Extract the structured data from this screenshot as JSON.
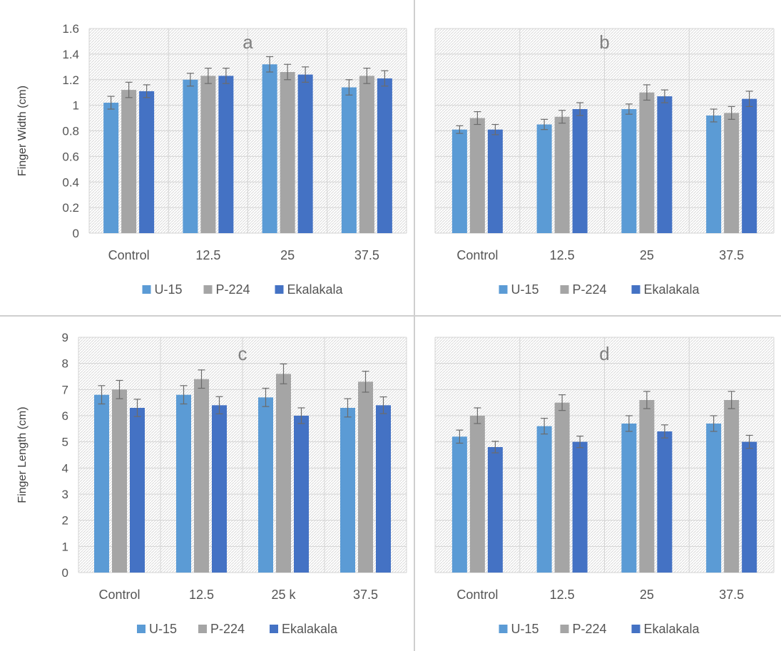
{
  "series_colors": {
    "U-15": "#5B9BD5",
    "P-224": "#A5A5A5",
    "Ekalakala": "#4472C4"
  },
  "chart_data": [
    {
      "type": "bar",
      "panel_label": "a",
      "ylabel": "Finger Width (cm)",
      "categories": [
        "Control",
        "12.5",
        "25",
        "37.5"
      ],
      "ylim": [
        0,
        1.6
      ],
      "yticks": [
        "0",
        "0.2",
        "0.4",
        "0.6",
        "0.8",
        "1",
        "1.2",
        "1.4",
        "1.6"
      ],
      "grid": true,
      "legend": "bottom",
      "series": [
        {
          "name": "U-15",
          "values": [
            1.02,
            1.2,
            1.32,
            1.14
          ],
          "errors": [
            0.05,
            0.05,
            0.06,
            0.06
          ]
        },
        {
          "name": "P-224",
          "values": [
            1.12,
            1.23,
            1.26,
            1.23
          ],
          "errors": [
            0.06,
            0.06,
            0.06,
            0.06
          ]
        },
        {
          "name": "Ekalakala",
          "values": [
            1.11,
            1.23,
            1.24,
            1.21
          ],
          "errors": [
            0.05,
            0.06,
            0.06,
            0.06
          ]
        }
      ]
    },
    {
      "type": "bar",
      "panel_label": "b",
      "ylabel": "",
      "categories": [
        "Control",
        "12.5",
        "25",
        "37.5"
      ],
      "ylim": [
        0,
        1.6
      ],
      "yticks": [],
      "grid": true,
      "legend": "bottom",
      "series": [
        {
          "name": "U-15",
          "values": [
            0.81,
            0.85,
            0.97,
            0.92
          ],
          "errors": [
            0.03,
            0.04,
            0.04,
            0.05
          ]
        },
        {
          "name": "P-224",
          "values": [
            0.9,
            0.91,
            1.1,
            0.94
          ],
          "errors": [
            0.05,
            0.05,
            0.06,
            0.05
          ]
        },
        {
          "name": "Ekalakala",
          "values": [
            0.81,
            0.97,
            1.07,
            1.05
          ],
          "errors": [
            0.04,
            0.05,
            0.05,
            0.06
          ]
        }
      ]
    },
    {
      "type": "bar",
      "panel_label": "c",
      "ylabel": "Finger Length (cm)",
      "categories": [
        "Control",
        "12.5",
        "25 k",
        "37.5"
      ],
      "ylim": [
        0,
        9
      ],
      "yticks": [
        "0",
        "1",
        "2",
        "3",
        "4",
        "5",
        "6",
        "7",
        "8",
        "9"
      ],
      "grid": true,
      "legend": "bottom",
      "series": [
        {
          "name": "U-15",
          "values": [
            6.8,
            6.8,
            6.7,
            6.3
          ],
          "errors": [
            0.35,
            0.35,
            0.35,
            0.35
          ]
        },
        {
          "name": "P-224",
          "values": [
            7.0,
            7.4,
            7.6,
            7.3
          ],
          "errors": [
            0.35,
            0.35,
            0.38,
            0.4
          ]
        },
        {
          "name": "Ekalakala",
          "values": [
            6.3,
            6.4,
            6.0,
            6.4
          ],
          "errors": [
            0.33,
            0.33,
            0.3,
            0.32
          ]
        }
      ]
    },
    {
      "type": "bar",
      "panel_label": "d",
      "ylabel": "",
      "categories": [
        "Control",
        "12.5",
        "25",
        "37.5"
      ],
      "ylim": [
        0,
        9
      ],
      "yticks": [],
      "grid": true,
      "legend": "bottom",
      "series": [
        {
          "name": "U-15",
          "values": [
            5.2,
            5.6,
            5.7,
            5.7
          ],
          "errors": [
            0.25,
            0.3,
            0.3,
            0.3
          ]
        },
        {
          "name": "P-224",
          "values": [
            6.0,
            6.5,
            6.6,
            6.6
          ],
          "errors": [
            0.3,
            0.3,
            0.33,
            0.33
          ]
        },
        {
          "name": "Ekalakala",
          "values": [
            4.8,
            5.0,
            5.4,
            5.0
          ],
          "errors": [
            0.22,
            0.22,
            0.25,
            0.25
          ]
        }
      ]
    }
  ]
}
